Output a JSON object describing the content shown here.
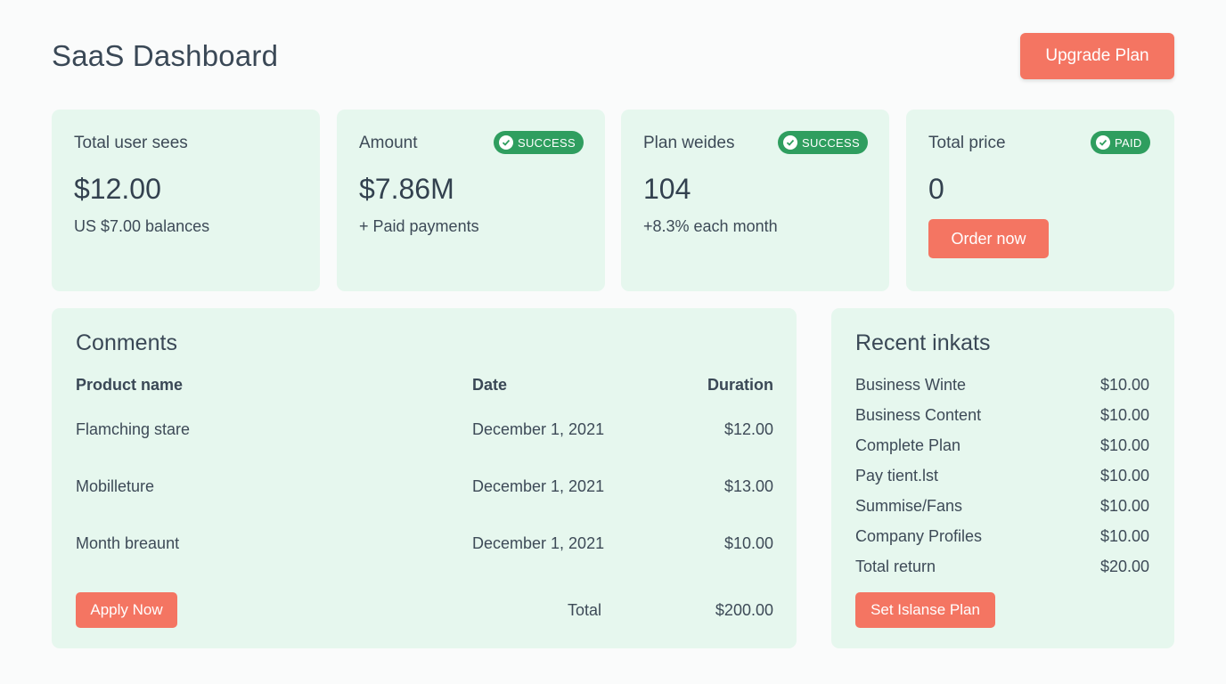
{
  "header": {
    "title": "SaaS Dashboard",
    "upgrade_label": "Upgrade Plan"
  },
  "stats": [
    {
      "label": "Total user sees",
      "value": "$12.00",
      "sub": "US $7.00 balances"
    },
    {
      "label": "Amount",
      "value": "$7.86M",
      "sub": "+ Paid payments",
      "badge": "SUCCESS"
    },
    {
      "label": "Plan weides",
      "value": "104",
      "sub": "+8.3% each month",
      "badge": "SUCCESS"
    },
    {
      "label": "Total price",
      "value": "0",
      "badge": "PAID",
      "button": "Order now"
    }
  ],
  "comments": {
    "title": "Conments",
    "columns": [
      "Product name",
      "Date",
      "Duration"
    ],
    "rows": [
      {
        "name": "Flamching stare",
        "date": "December 1, 2021",
        "amount": "$12.00"
      },
      {
        "name": "Mobilleture",
        "date": "December 1, 2021",
        "amount": "$13.00"
      },
      {
        "name": "Month breaunt",
        "date": "December 1, 2021",
        "amount": "$10.00"
      }
    ],
    "apply_label": "Apply Now",
    "total_label": "Total",
    "total_value": "$200.00"
  },
  "recent": {
    "title": "Recent inkats",
    "items": [
      {
        "name": "Business Winte",
        "amount": "$10.00"
      },
      {
        "name": "Business Content",
        "amount": "$10.00"
      },
      {
        "name": "Complete Plan",
        "amount": "$10.00"
      },
      {
        "name": "Pay tient.lst",
        "amount": "$10.00"
      },
      {
        "name": "Summise/Fans",
        "amount": "$10.00"
      },
      {
        "name": "Company Profiles",
        "amount": "$10.00"
      },
      {
        "name": "Total return",
        "amount": "$20.00"
      }
    ],
    "button": "Set Islanse Plan"
  },
  "colors": {
    "accent": "#f47562",
    "card_bg": "#e6f7ee",
    "badge_green": "#2f9e5f",
    "text": "#3a4856"
  },
  "icons": {
    "badge_icon": "check-circle-icon"
  }
}
